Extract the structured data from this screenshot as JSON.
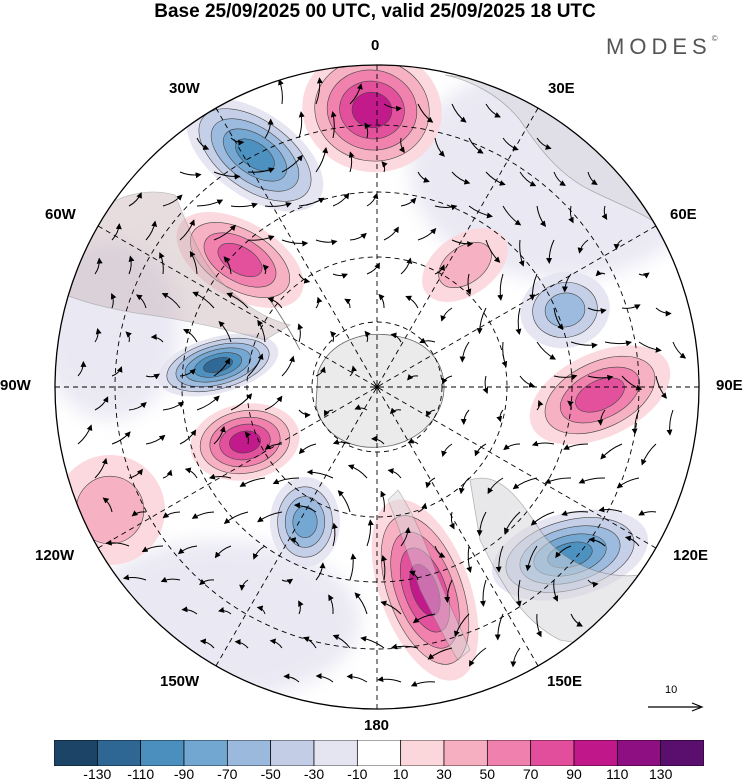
{
  "title": "Base 25/09/2025 00 UTC, valid 25/09/2025 18 UTC",
  "brand": "MODES",
  "brand_mark": "©",
  "longitude_labels": {
    "l0": "0",
    "l30e": "30E",
    "l60e": "60E",
    "l90e": "90E",
    "l120e": "120E",
    "l150e": "150E",
    "l180": "180",
    "l150w": "150W",
    "l120w": "120W",
    "l90w": "90W",
    "l60w": "60W",
    "l30w": "30W"
  },
  "reference_vector": {
    "label": "10",
    "magnitude": 10
  },
  "colorbar": {
    "levels": [
      "-130",
      "-110",
      "-90",
      "-70",
      "-50",
      "-30",
      "-10",
      "10",
      "30",
      "50",
      "70",
      "90",
      "110",
      "130"
    ],
    "colors": [
      "#1c4466",
      "#2e6794",
      "#4b8fbf",
      "#72a7d2",
      "#9ab9dd",
      "#c3cde6",
      "#e5e4f1",
      "#ffffff",
      "#fbd7dc",
      "#f6afc0",
      "#f080ad",
      "#e24e9c",
      "#c0178a",
      "#8e0f81",
      "#5a0f6e"
    ]
  },
  "field": {
    "projection": "south-polar-stereographic",
    "anomalies": [
      {
        "name": "anomaly-0e-positive",
        "value": 95
      },
      {
        "name": "anomaly-30w-negative",
        "value": -105
      },
      {
        "name": "anomaly-60w-positive",
        "value": 80
      },
      {
        "name": "anomaly-90w-negative",
        "value": -125
      },
      {
        "name": "anomaly-110w-positive",
        "value": 105
      },
      {
        "name": "anomaly-135w-negative",
        "value": -70
      },
      {
        "name": "anomaly-170e-positive",
        "value": 100
      },
      {
        "name": "anomaly-135e-negative",
        "value": -95
      },
      {
        "name": "anomaly-90e-positive",
        "value": 85
      },
      {
        "name": "anomaly-60e-negative",
        "value": -55
      },
      {
        "name": "anomaly-40e-positive",
        "value": 35
      },
      {
        "name": "anomaly-120w-positive",
        "value": 30
      }
    ]
  }
}
